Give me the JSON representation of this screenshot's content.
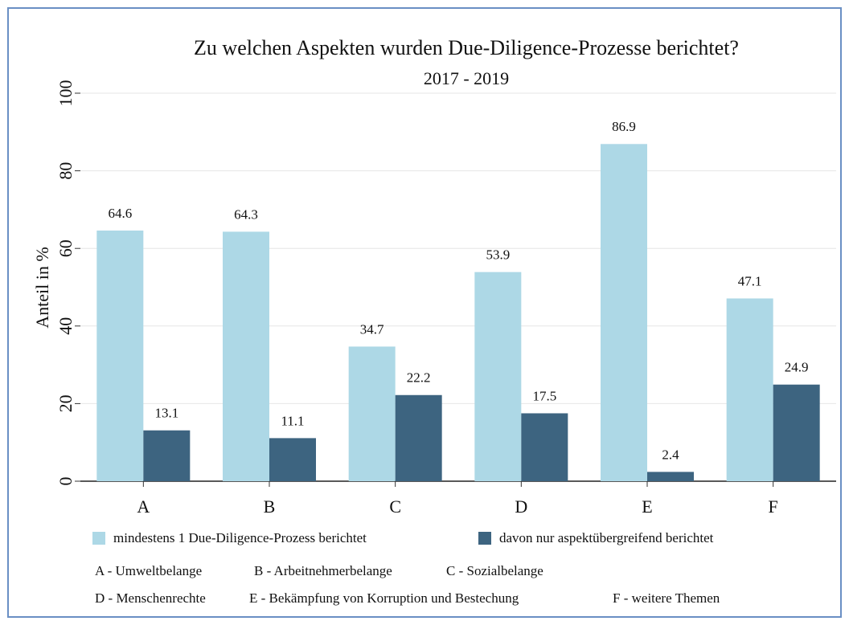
{
  "chart_data": {
    "type": "bar",
    "title": "Zu welchen Aspekten wurden Due-Diligence-Prozesse berichtet?",
    "subtitle": "2017 - 2019",
    "y_label": "Anteil in %",
    "categories": [
      "A",
      "B",
      "C",
      "D",
      "E",
      "F"
    ],
    "series": [
      {
        "name": "mindestens 1 Due-Diligence-Prozess berichtet",
        "color": "#add8e6",
        "values": [
          64.6,
          64.3,
          34.7,
          53.9,
          86.9,
          47.1
        ]
      },
      {
        "name": "davon nur aspektübergreifend berichtet",
        "color": "#3d6480",
        "values": [
          13.1,
          11.1,
          22.2,
          17.5,
          2.4,
          24.9
        ]
      }
    ],
    "ylim": [
      0,
      100
    ],
    "yticks": [
      0,
      20,
      40,
      60,
      80,
      100
    ],
    "grid": true,
    "notes": [
      [
        "A - Umweltbelange",
        "B - Arbeitnehmerbelange",
        "C - Sozialbelange"
      ],
      [
        "D - Menschenrechte",
        "E - Bekämpfung von Korruption und Bestechung",
        "F - weitere Themen"
      ]
    ]
  }
}
